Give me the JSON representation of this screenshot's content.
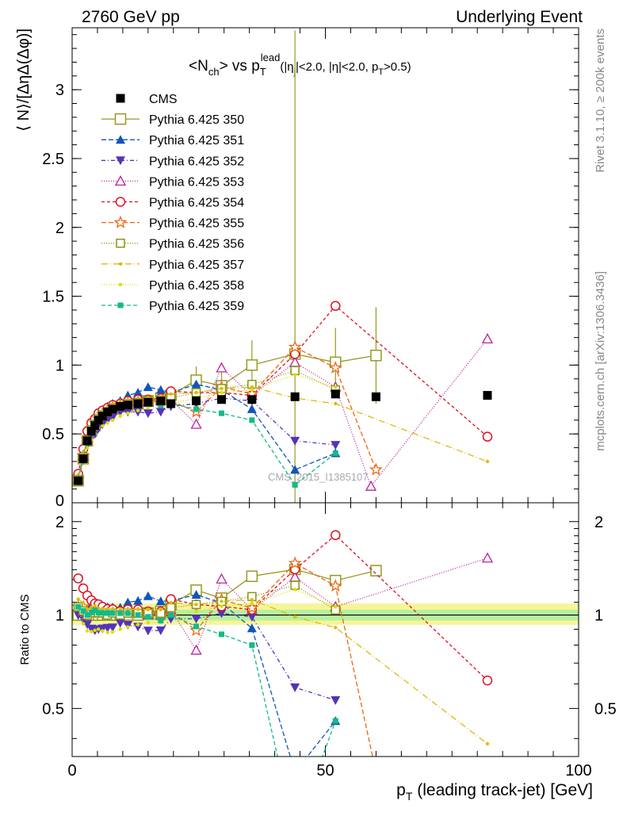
{
  "header": {
    "left": "2760 GeV pp",
    "right": "Underlying Event"
  },
  "title": {
    "main": "<N",
    "main_sub": "ch",
    "vs": "> vs p",
    "vs_sub": "T",
    "vs_sup": "lead",
    "cuts_a": "(|η",
    "cuts_sub": "j",
    "cuts_b": "|<2.0, |η|<2.0, p",
    "cuts_sub2": "T",
    "cuts_c": ">0.5)"
  },
  "side_labels": {
    "rivet": "Rivet 3.1.10, ≥ 200k events",
    "mcplots": "mcplots.cern.ch [arXiv:1306.3436]"
  },
  "watermark": "CMS_2015_I1385107",
  "chart_data": [
    {
      "type": "scatter",
      "panel": "main",
      "ylabel": "⟨ N⟩/[ΔηΔ(Δφ)]",
      "xlim": [
        0,
        100
      ],
      "ylim": [
        0,
        3.45
      ],
      "yticks": [
        0.5,
        1,
        1.5,
        2,
        2.5,
        3
      ],
      "ytick_labels": [
        "0.5",
        "1",
        "1.5",
        "2",
        "2.5",
        "3"
      ],
      "bottom_tick_label": "0",
      "legend_position": "upper-left",
      "data": {
        "name": "CMS",
        "color": "#000000",
        "x": [
          1.2,
          2.2,
          3.0,
          3.8,
          4.5,
          5.2,
          6.0,
          7.0,
          8.0,
          9.5,
          11.0,
          13.0,
          15.0,
          17.5,
          19.5,
          24.5,
          29.5,
          35.5,
          44.0,
          52.0,
          60.0,
          82.0
        ],
        "y": [
          0.16,
          0.32,
          0.45,
          0.52,
          0.56,
          0.6,
          0.63,
          0.66,
          0.68,
          0.7,
          0.71,
          0.72,
          0.73,
          0.74,
          0.72,
          0.74,
          0.75,
          0.75,
          0.77,
          0.79,
          0.77,
          0.78
        ]
      },
      "series": [
        {
          "name": "Pythia 6.425 350",
          "color": "#999922",
          "marker": "open-square",
          "dash": "solid",
          "show_errors": true,
          "x": [
            1.2,
            2.2,
            3.0,
            3.8,
            4.5,
            5.2,
            6.0,
            7.0,
            8.0,
            9.5,
            11.0,
            13.0,
            15.0,
            17.5,
            19.5,
            24.5,
            29.5,
            35.5,
            44.0,
            52.0,
            60.0
          ],
          "y": [
            0.16,
            0.32,
            0.45,
            0.52,
            0.56,
            0.6,
            0.63,
            0.66,
            0.68,
            0.7,
            0.71,
            0.72,
            0.74,
            0.76,
            0.78,
            0.89,
            0.85,
            1.0,
            1.08,
            1.02,
            1.07
          ],
          "err": [
            0.01,
            0.01,
            0.01,
            0.01,
            0.01,
            0.01,
            0.01,
            0.02,
            0.02,
            0.02,
            0.03,
            0.03,
            0.04,
            0.05,
            0.06,
            0.1,
            0.13,
            0.18,
            2.35,
            0.25,
            0.35
          ]
        },
        {
          "name": "Pythia 6.425 351",
          "color": "#1155bb",
          "marker": "filled-triangle-up",
          "dash": "6,3",
          "x": [
            1.2,
            2.2,
            3.0,
            3.8,
            4.5,
            5.2,
            6.0,
            7.0,
            8.0,
            9.5,
            11.0,
            13.0,
            15.0,
            17.5,
            19.5,
            24.5,
            29.5,
            35.5,
            44.0,
            52.0
          ],
          "y": [
            0.17,
            0.34,
            0.47,
            0.56,
            0.6,
            0.64,
            0.66,
            0.7,
            0.72,
            0.74,
            0.78,
            0.8,
            0.84,
            0.82,
            0.8,
            0.86,
            0.82,
            0.68,
            0.24,
            0.36
          ]
        },
        {
          "name": "Pythia 6.425 352",
          "color": "#5533bb",
          "marker": "filled-triangle-down",
          "dash": "5,3,1,3",
          "x": [
            1.2,
            2.2,
            3.0,
            3.8,
            4.5,
            5.2,
            6.0,
            7.0,
            8.0,
            9.5,
            11.0,
            13.0,
            15.0,
            17.5,
            19.5,
            24.5,
            29.5,
            35.5,
            44.0,
            52.0
          ],
          "y": [
            0.16,
            0.31,
            0.42,
            0.47,
            0.5,
            0.54,
            0.57,
            0.6,
            0.62,
            0.66,
            0.66,
            0.66,
            0.65,
            0.66,
            0.7,
            0.72,
            0.76,
            0.74,
            0.45,
            0.42
          ]
        },
        {
          "name": "Pythia 6.425 353",
          "color": "#bb2299",
          "marker": "open-triangle-up",
          "dash": "1,2",
          "x": [
            1.2,
            2.2,
            3.0,
            3.8,
            4.5,
            5.2,
            6.0,
            7.0,
            8.0,
            9.5,
            11.0,
            13.0,
            15.0,
            17.5,
            19.5,
            24.5,
            29.5,
            35.5,
            44.0,
            52.0,
            59.0,
            82.0
          ],
          "y": [
            0.17,
            0.34,
            0.46,
            0.53,
            0.58,
            0.62,
            0.65,
            0.68,
            0.7,
            0.71,
            0.73,
            0.74,
            0.73,
            0.74,
            0.75,
            0.57,
            0.98,
            0.78,
            1.02,
            0.84,
            0.12,
            1.19
          ]
        },
        {
          "name": "Pythia 6.425 354",
          "color": "#dd1122",
          "marker": "open-circle",
          "dash": "4,3",
          "x": [
            1.2,
            2.2,
            3.0,
            3.8,
            4.5,
            5.2,
            6.0,
            7.0,
            8.0,
            9.5,
            11.0,
            13.0,
            15.0,
            17.5,
            19.5,
            24.5,
            29.5,
            35.5,
            44.0,
            52.0,
            82.0
          ],
          "y": [
            0.21,
            0.39,
            0.52,
            0.58,
            0.61,
            0.65,
            0.67,
            0.69,
            0.71,
            0.72,
            0.74,
            0.75,
            0.75,
            0.76,
            0.81,
            0.8,
            0.8,
            0.78,
            1.08,
            1.43,
            0.48
          ]
        },
        {
          "name": "Pythia 6.425 355",
          "color": "#ee6611",
          "marker": "open-star",
          "dash": "6,3",
          "x": [
            1.2,
            2.2,
            3.0,
            3.8,
            4.5,
            5.2,
            6.0,
            7.0,
            8.0,
            9.5,
            11.0,
            13.0,
            15.0,
            17.5,
            19.5,
            24.5,
            29.5,
            35.5,
            44.0,
            52.0,
            60.0
          ],
          "y": [
            0.17,
            0.34,
            0.46,
            0.54,
            0.58,
            0.61,
            0.64,
            0.67,
            0.69,
            0.71,
            0.72,
            0.73,
            0.74,
            0.74,
            0.74,
            0.66,
            0.84,
            0.79,
            1.13,
            0.98,
            0.24
          ]
        },
        {
          "name": "Pythia 6.425 356",
          "color": "#889911",
          "marker": "open-square-small",
          "dash": "1,2",
          "x": [
            1.2,
            2.2,
            3.0,
            3.8,
            4.5,
            5.2,
            6.0,
            7.0,
            8.0,
            9.5,
            11.0,
            13.0,
            15.0,
            17.5,
            19.5,
            24.5,
            29.5,
            35.5,
            44.0,
            52.0
          ],
          "y": [
            0.17,
            0.33,
            0.45,
            0.53,
            0.57,
            0.61,
            0.64,
            0.66,
            0.69,
            0.7,
            0.72,
            0.73,
            0.74,
            0.75,
            0.76,
            0.8,
            0.83,
            0.86,
            0.96,
            0.82
          ]
        },
        {
          "name": "Pythia 6.425 357",
          "color": "#ddbb11",
          "marker": "dot",
          "dash": "8,3,1,3",
          "x": [
            1.2,
            2.2,
            3.0,
            3.8,
            4.5,
            5.2,
            6.0,
            7.0,
            8.0,
            9.5,
            11.0,
            13.0,
            15.0,
            17.5,
            19.5,
            24.5,
            29.5,
            35.5,
            44.0,
            52.0,
            82.0
          ],
          "y": [
            0.18,
            0.35,
            0.47,
            0.55,
            0.6,
            0.63,
            0.66,
            0.69,
            0.71,
            0.73,
            0.74,
            0.75,
            0.76,
            0.77,
            0.79,
            0.8,
            0.83,
            0.84,
            0.76,
            0.72,
            0.3
          ]
        },
        {
          "name": "Pythia 6.425 358",
          "color": "#dddd00",
          "marker": "dot",
          "dash": "1,2",
          "x": [
            1.2,
            2.2,
            3.0,
            3.8,
            4.5,
            5.2,
            6.0,
            7.0,
            8.0,
            9.5,
            11.0,
            13.0,
            15.0,
            17.5,
            19.5,
            24.5,
            29.5,
            35.5,
            44.0,
            52.0
          ],
          "y": [
            0.17,
            0.3,
            0.4,
            0.46,
            0.5,
            0.54,
            0.56,
            0.58,
            0.6,
            0.63,
            0.65,
            0.67,
            0.69,
            0.7,
            0.72,
            0.76,
            0.8,
            0.82,
            0.93,
            0.84
          ]
        },
        {
          "name": "Pythia 6.425 359",
          "color": "#11bb88",
          "marker": "filled-square-small",
          "dash": "5,3",
          "x": [
            1.2,
            2.2,
            3.0,
            3.8,
            4.5,
            5.2,
            6.0,
            7.0,
            8.0,
            9.5,
            11.0,
            13.0,
            15.0,
            17.5,
            19.5,
            24.5,
            29.5,
            35.5,
            44.0,
            52.0
          ],
          "y": [
            0.17,
            0.33,
            0.45,
            0.53,
            0.58,
            0.61,
            0.64,
            0.67,
            0.69,
            0.71,
            0.72,
            0.72,
            0.72,
            0.71,
            0.72,
            0.68,
            0.65,
            0.6,
            0.13,
            0.36
          ]
        }
      ]
    },
    {
      "type": "scatter",
      "panel": "ratio",
      "ylabel": "Ratio to CMS",
      "xlabel_main": "p",
      "xlabel_sub": "T",
      "xlabel_rest": " (leading track-jet) [GeV]",
      "xlim": [
        0,
        100
      ],
      "ylim": [
        0.35,
        2.3
      ],
      "xticks": [
        0,
        50,
        100
      ],
      "xtick_labels": [
        "0",
        "50",
        "100"
      ],
      "yticks": [
        0.5,
        1,
        2
      ],
      "ytick_labels": [
        "0.5",
        "1",
        "2"
      ],
      "reference": 1.0,
      "band_inner": [
        0.96,
        1.04
      ],
      "band_outer": [
        0.93,
        1.09
      ]
    }
  ]
}
